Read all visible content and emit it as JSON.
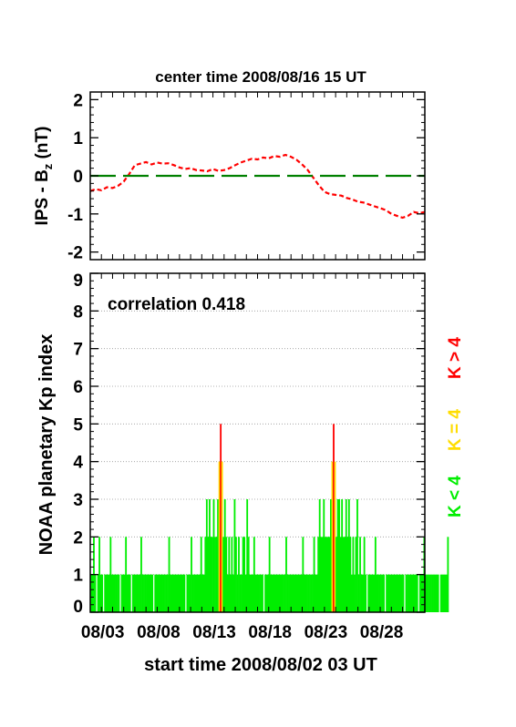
{
  "chart_data": [
    {
      "type": "line",
      "title": "center time 2008/08/16 15 UT",
      "ylabel_main": "IPS - B",
      "ylabel_sub": "z",
      "ylabel_unit": " (nT)",
      "ylim": [
        -2.2,
        2.2
      ],
      "yticks": [
        "2",
        "1",
        "0",
        "-1",
        "-2"
      ],
      "grid": false,
      "series": [
        {
          "color": "#ff0000",
          "style": "dashed",
          "x": [
            0,
            0.5,
            1,
            1.5,
            2,
            2.5,
            3,
            3.5,
            4,
            4.5,
            5,
            5.5,
            6,
            6.5,
            7,
            7.5,
            8,
            8.5,
            9,
            9.5,
            10,
            10.5,
            11,
            11.5,
            12,
            12.5,
            13,
            13.5,
            14,
            14.5,
            15,
            15.5,
            16,
            16.5,
            17,
            17.5,
            18,
            18.5,
            19,
            19.5,
            20,
            20.5,
            21,
            21.5,
            22,
            22.5,
            23,
            23.5,
            24,
            24.5,
            25,
            25.5,
            26,
            26.5,
            27,
            27.5,
            28,
            28.5,
            29,
            29.5,
            30
          ],
          "values": [
            -0.4,
            -0.35,
            -0.38,
            -0.3,
            -0.32,
            -0.26,
            -0.15,
            0.05,
            0.28,
            0.32,
            0.36,
            0.3,
            0.35,
            0.32,
            0.33,
            0.28,
            0.22,
            0.18,
            0.2,
            0.15,
            0.14,
            0.12,
            0.18,
            0.13,
            0.15,
            0.2,
            0.28,
            0.35,
            0.4,
            0.45,
            0.43,
            0.48,
            0.46,
            0.52,
            0.5,
            0.55,
            0.5,
            0.42,
            0.3,
            0.15,
            -0.05,
            -0.25,
            -0.42,
            -0.48,
            -0.5,
            -0.52,
            -0.58,
            -0.62,
            -0.68,
            -0.7,
            -0.75,
            -0.8,
            -0.85,
            -0.9,
            -1.0,
            -1.05,
            -1.1,
            -1.05,
            -0.95,
            -0.98,
            -0.95
          ]
        },
        {
          "color": "#008000",
          "style": "long-dash",
          "x": [
            0,
            30
          ],
          "values": [
            0,
            0
          ]
        }
      ]
    },
    {
      "type": "bar",
      "annotation": "correlation 0.418",
      "ylabel": "NOAA planetary Kp index",
      "xlabel": "start time 2008/08/02 03 UT",
      "xlim": [
        0,
        30
      ],
      "ylim": [
        0,
        9
      ],
      "yticks": [
        "0",
        "1",
        "2",
        "3",
        "4",
        "5",
        "6",
        "7",
        "8",
        "9"
      ],
      "xtick_labels": [
        "08/03",
        "08/08",
        "08/13",
        "08/18",
        "08/23",
        "08/28"
      ],
      "xtick_positions": [
        0.875,
        5.875,
        10.875,
        15.875,
        20.875,
        25.875
      ],
      "grid": true,
      "legend": [
        {
          "label": "K < 4",
          "color": "#00ee00"
        },
        {
          "label": "K = 4",
          "color": "#ffdd00"
        },
        {
          "label": "K > 4",
          "color": "#ff0000"
        }
      ],
      "bar_width_days": 0.125,
      "values": [
        1,
        1,
        2,
        1,
        0,
        1,
        2,
        1,
        1,
        0,
        1,
        1,
        1,
        1,
        2,
        1,
        1,
        1,
        1,
        1,
        1,
        0,
        1,
        1,
        1,
        2,
        1,
        1,
        1,
        0,
        1,
        1,
        1,
        1,
        1,
        1,
        2,
        1,
        1,
        1,
        1,
        1,
        1,
        1,
        1,
        0,
        1,
        1,
        1,
        1,
        1,
        1,
        1,
        1,
        1,
        1,
        2,
        1,
        1,
        1,
        1,
        1,
        1,
        1,
        1,
        1,
        1,
        1,
        0,
        1,
        1,
        1,
        2,
        1,
        1,
        1,
        1,
        1,
        1,
        2,
        1,
        1,
        2,
        3,
        2,
        3,
        2,
        2,
        3,
        2,
        2,
        3,
        4,
        5,
        4,
        2,
        3,
        2,
        1,
        2,
        1,
        2,
        1,
        3,
        2,
        1,
        2,
        1,
        1,
        2,
        2,
        1,
        3,
        2,
        1,
        1,
        1,
        2,
        1,
        1,
        1,
        1,
        1,
        1,
        0,
        1,
        1,
        1,
        2,
        1,
        1,
        1,
        1,
        1,
        1,
        1,
        1,
        1,
        1,
        1,
        2,
        1,
        1,
        1,
        1,
        1,
        1,
        1,
        1,
        1,
        1,
        1,
        2,
        1,
        1,
        1,
        1,
        1,
        1,
        1,
        2,
        1,
        1,
        2,
        3,
        2,
        2,
        3,
        2,
        2,
        2,
        2,
        3,
        4,
        5,
        4,
        2,
        3,
        3,
        2,
        3,
        2,
        2,
        3,
        2,
        3,
        2,
        1,
        2,
        1,
        2,
        3,
        1,
        2,
        1,
        1,
        2,
        1,
        0,
        1,
        1,
        1,
        1,
        1,
        2,
        1,
        1,
        1,
        1,
        1,
        1,
        0,
        1,
        1,
        1,
        1,
        1,
        1,
        1,
        1,
        1,
        1,
        1,
        1,
        1,
        0,
        1,
        1,
        1,
        1,
        1,
        1,
        1,
        1,
        1,
        0,
        1,
        1,
        1,
        2,
        1,
        1,
        1,
        1,
        1,
        1,
        1,
        1,
        1,
        1,
        0,
        1,
        1,
        1,
        1,
        1,
        2
      ]
    }
  ]
}
